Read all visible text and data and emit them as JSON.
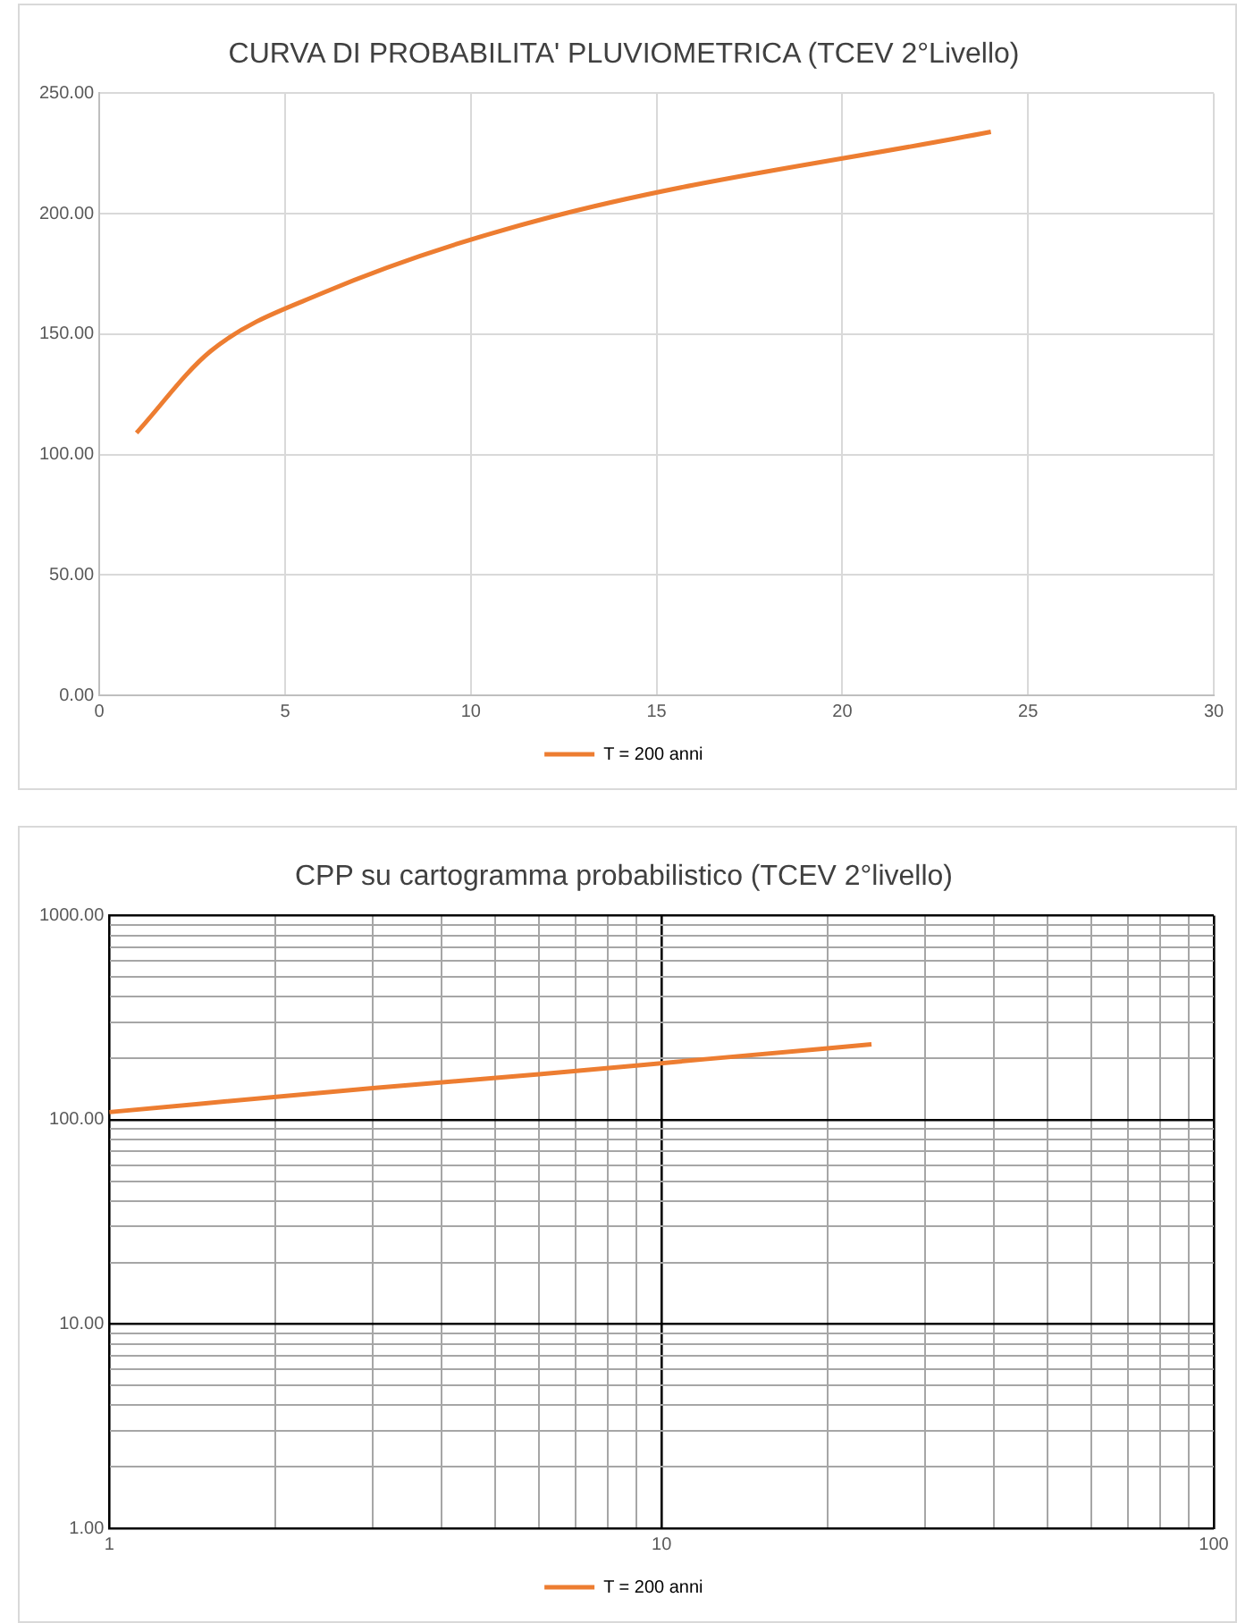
{
  "chart_data": [
    {
      "type": "line",
      "title": "CURVA DI PROBABILITA' PLUVIOMETRICA (TCEV 2°Livello)",
      "x": [
        1,
        3,
        6,
        12,
        24
      ],
      "series": [
        {
          "name": "T = 200 anni",
          "color": "#ed7d31",
          "values": [
            109,
            143,
            167,
            198,
            234
          ]
        }
      ],
      "xlim": [
        0,
        30
      ],
      "xticks": [
        0,
        5,
        10,
        15,
        20,
        25,
        30
      ],
      "ylim": [
        0,
        250
      ],
      "yticks": [
        {
          "value": 0,
          "label": "0.00"
        },
        {
          "value": 50,
          "label": "50.00"
        },
        {
          "value": 100,
          "label": "100.00"
        },
        {
          "value": 150,
          "label": "150.00"
        },
        {
          "value": 200,
          "label": "200.00"
        },
        {
          "value": 250,
          "label": "250.00"
        }
      ],
      "grid": true,
      "legend": "bottom"
    },
    {
      "type": "line",
      "title": "CPP su cartogramma probabilistico (TCEV 2°livello)",
      "x": [
        1,
        3,
        6,
        12,
        24
      ],
      "series": [
        {
          "name": "T = 200 anni",
          "color": "#ed7d31",
          "values": [
            109,
            143,
            167,
            198,
            234
          ]
        }
      ],
      "log": "xy",
      "xlim": [
        1,
        100
      ],
      "xticks": [
        1,
        {
          "value": 2,
          "label": null
        },
        {
          "value": 3,
          "label": null
        },
        {
          "value": 4,
          "label": null
        },
        {
          "value": 5,
          "label": null
        },
        {
          "value": 6,
          "label": null
        },
        {
          "value": 7,
          "label": null
        },
        {
          "value": 8,
          "label": null
        },
        {
          "value": 9,
          "label": null
        },
        10,
        {
          "value": 20,
          "label": null
        },
        {
          "value": 30,
          "label": null
        },
        {
          "value": 40,
          "label": null
        },
        {
          "value": 50,
          "label": null
        },
        {
          "value": 60,
          "label": null
        },
        {
          "value": 70,
          "label": null
        },
        {
          "value": 80,
          "label": null
        },
        {
          "value": 90,
          "label": null
        },
        100
      ],
      "ylim": [
        1,
        1000
      ],
      "yticks": [
        {
          "value": 1,
          "label": "1.00"
        },
        {
          "value": 2,
          "label": null
        },
        {
          "value": 3,
          "label": null
        },
        {
          "value": 4,
          "label": null
        },
        {
          "value": 5,
          "label": null
        },
        {
          "value": 6,
          "label": null
        },
        {
          "value": 7,
          "label": null
        },
        {
          "value": 8,
          "label": null
        },
        {
          "value": 9,
          "label": null
        },
        {
          "value": 10,
          "label": "10.00"
        },
        {
          "value": 20,
          "label": null
        },
        {
          "value": 30,
          "label": null
        },
        {
          "value": 40,
          "label": null
        },
        {
          "value": 50,
          "label": null
        },
        {
          "value": 60,
          "label": null
        },
        {
          "value": 70,
          "label": null
        },
        {
          "value": 80,
          "label": null
        },
        {
          "value": 90,
          "label": null
        },
        {
          "value": 100,
          "label": "100.00"
        },
        {
          "value": 200,
          "label": null
        },
        {
          "value": 300,
          "label": null
        },
        {
          "value": 400,
          "label": null
        },
        {
          "value": 500,
          "label": null
        },
        {
          "value": 600,
          "label": null
        },
        {
          "value": 700,
          "label": null
        },
        {
          "value": 800,
          "label": null
        },
        {
          "value": 900,
          "label": null
        },
        {
          "value": 1000,
          "label": "1000.00"
        }
      ],
      "grid": true,
      "legend": "bottom"
    }
  ]
}
